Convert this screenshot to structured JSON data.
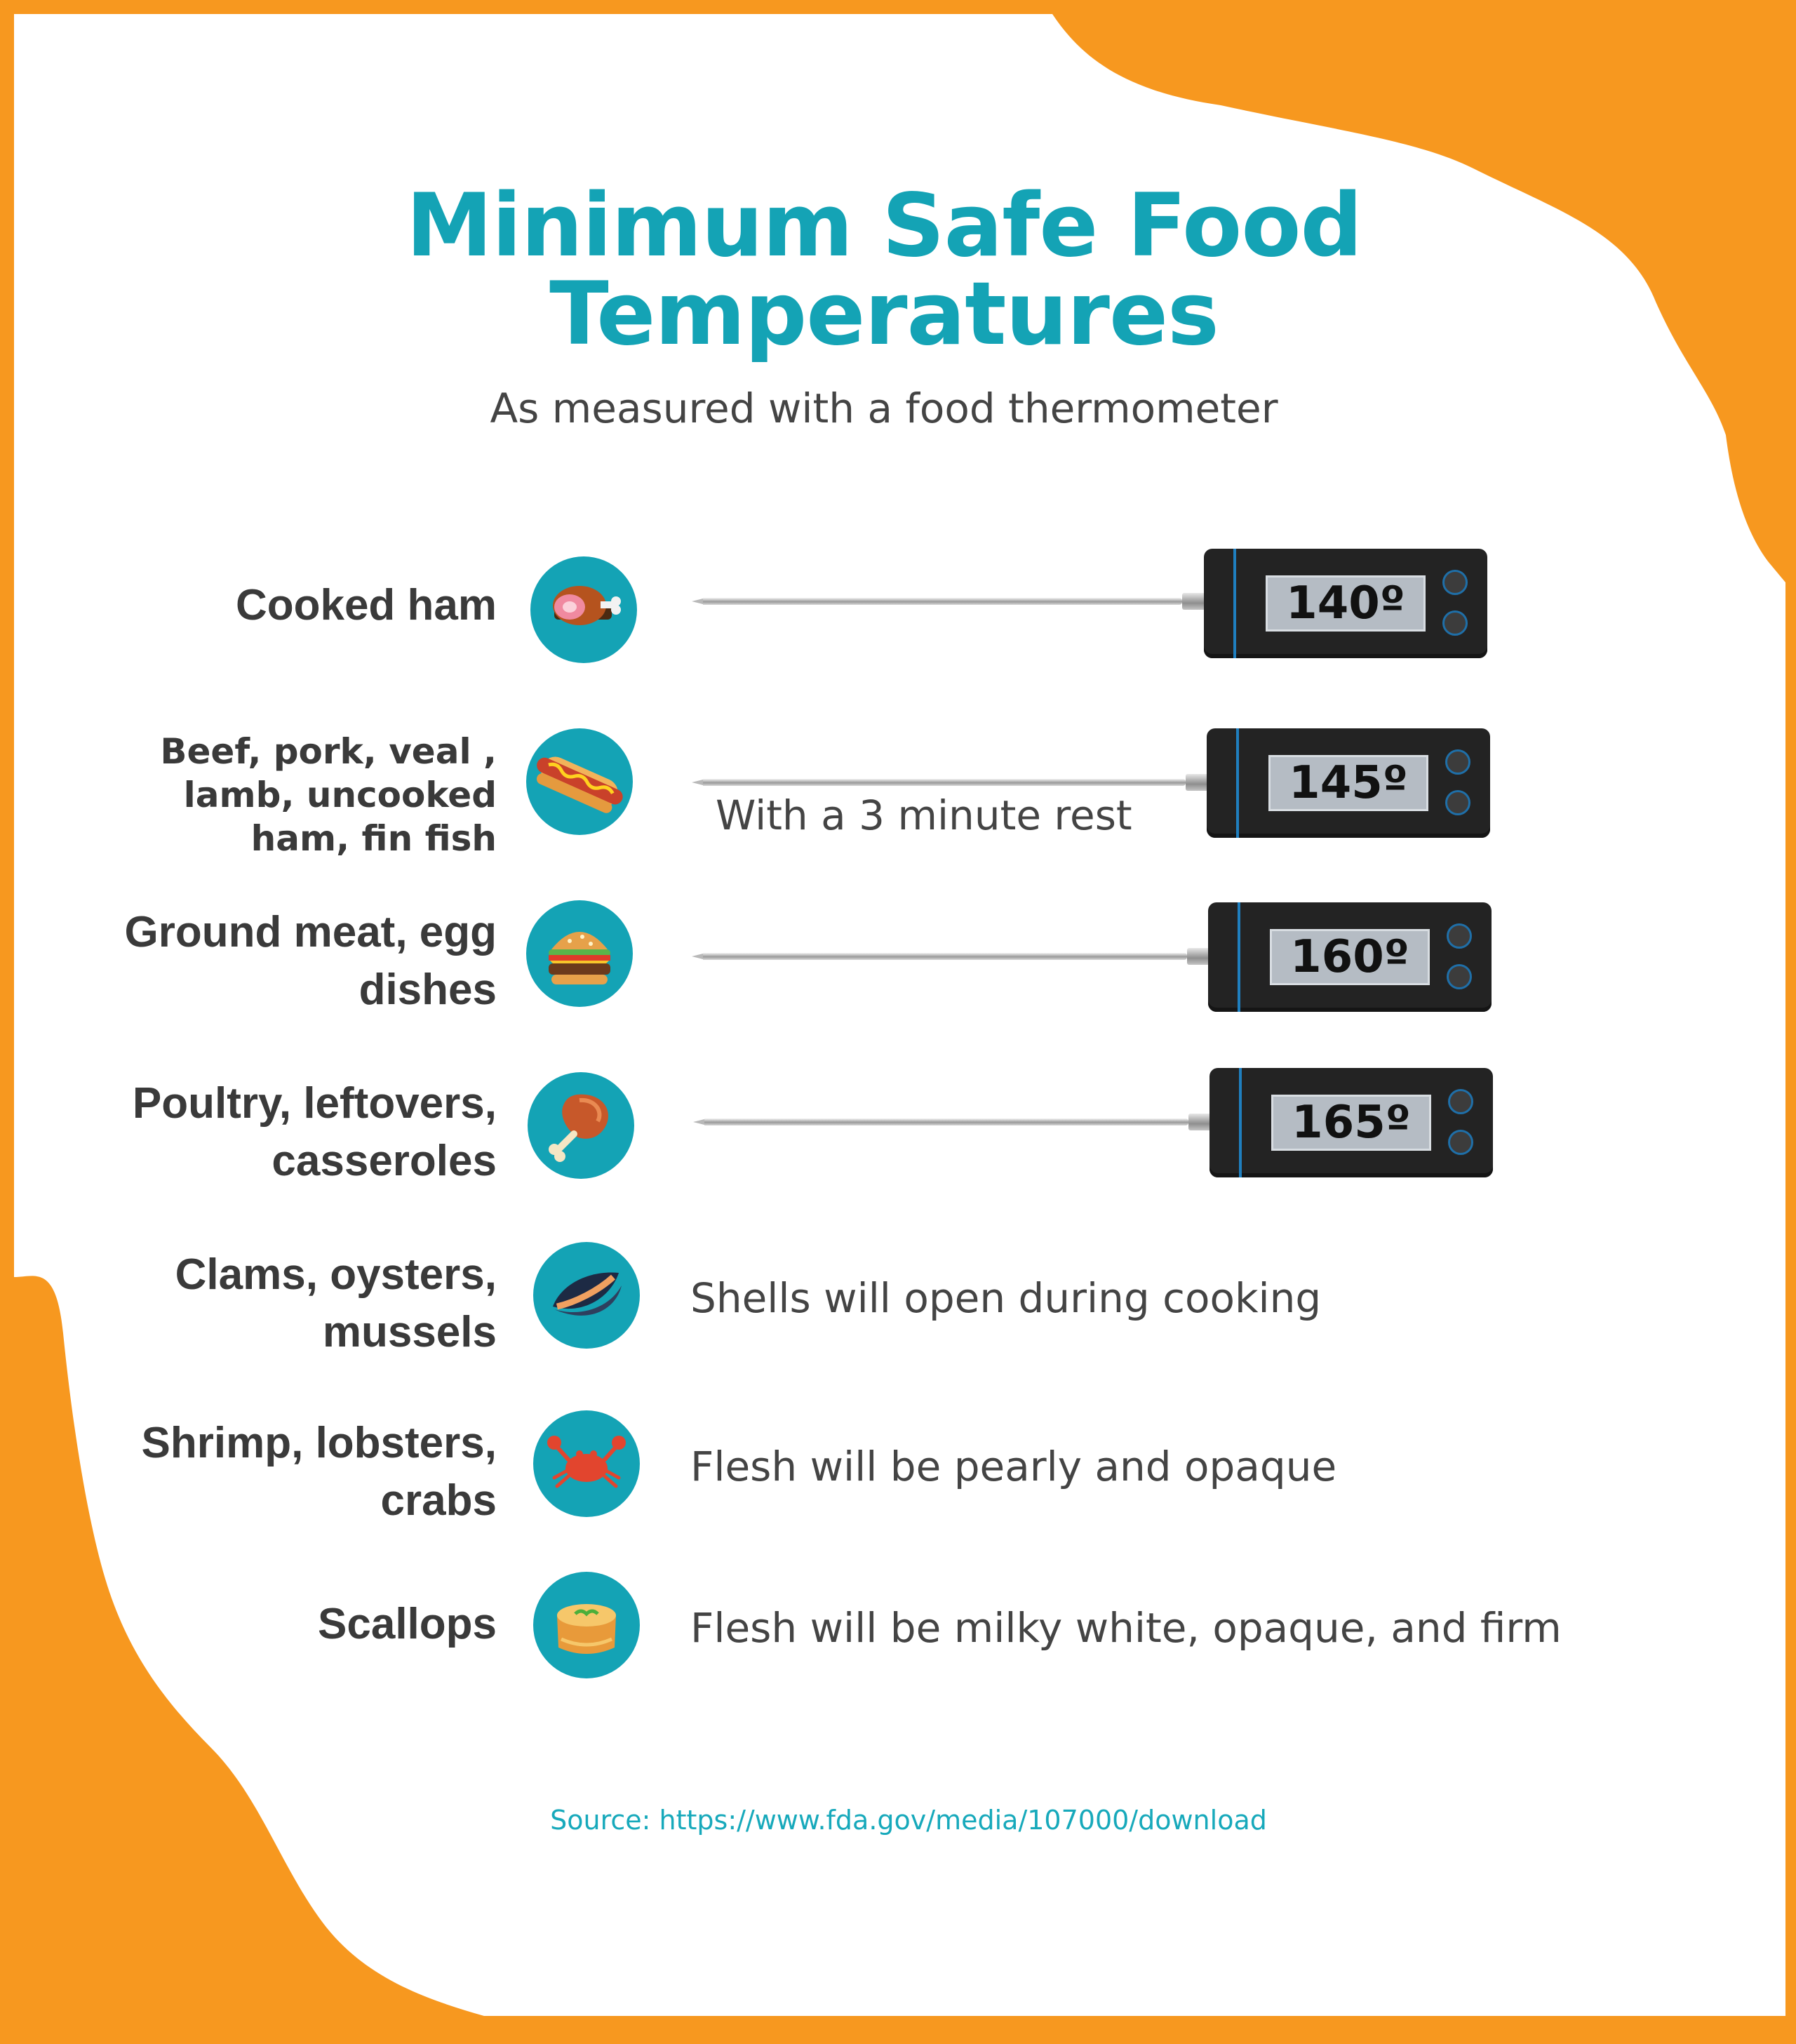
{
  "header": {
    "title_line1": "Minimum Safe Food",
    "title_line2": "Temperatures",
    "subtitle": "As measured with a food thermometer"
  },
  "rows": [
    {
      "lines": [
        "Cooked ham"
      ],
      "icon": "ham-icon",
      "temperature": "140º",
      "note": ""
    },
    {
      "lines": [
        "Beef, pork, veal ,",
        "lamb, uncooked",
        "ham, fin fish"
      ],
      "icon": "hotdog-icon",
      "temperature": "145º",
      "note": "With a 3 minute rest"
    },
    {
      "lines": [
        "Ground meat, egg",
        "dishes"
      ],
      "icon": "burger-icon",
      "temperature": "160º",
      "note": ""
    },
    {
      "lines": [
        "Poultry, leftovers,",
        "casseroles"
      ],
      "icon": "drumstick-icon",
      "temperature": "165º",
      "note": ""
    },
    {
      "lines": [
        "Clams, oysters,",
        "mussels"
      ],
      "icon": "mussel-icon",
      "temperature": "",
      "note": "Shells will open during cooking"
    },
    {
      "lines": [
        "Shrimp, lobsters,",
        "crabs"
      ],
      "icon": "crab-icon",
      "temperature": "",
      "note": "Flesh will be pearly and opaque"
    },
    {
      "lines": [
        "Scallops"
      ],
      "icon": "scallop-icon",
      "temperature": "",
      "note": "Flesh will be milky white, opaque, and firm"
    }
  ],
  "footer": {
    "source": "Source: https://www.fda.gov/media/107000/download"
  },
  "colors": {
    "accent": "#14a3b5",
    "frame_orange": "#f7981f",
    "text_dark": "#3a3a3a"
  }
}
